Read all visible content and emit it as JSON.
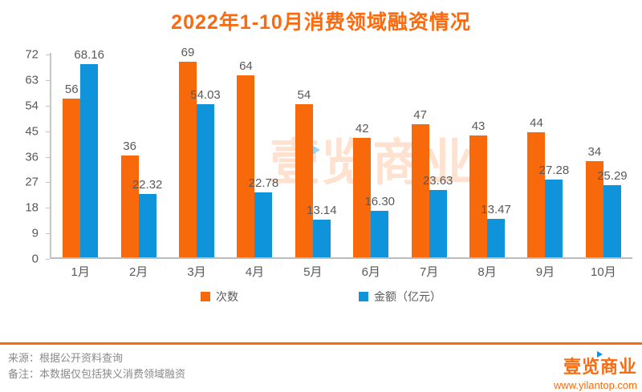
{
  "title": "2022年1-10月消费领域融资情况",
  "watermark": "壹览商业",
  "chart_data": {
    "type": "bar",
    "title": "2022年1-10月消费领域融资情况",
    "categories": [
      "1月",
      "2月",
      "3月",
      "4月",
      "5月",
      "6月",
      "7月",
      "8月",
      "9月",
      "10月"
    ],
    "series": [
      {
        "name": "次数",
        "color": "#f8690c",
        "values": [
          56,
          36,
          69,
          64,
          54,
          42,
          47,
          43,
          44,
          34
        ],
        "labels": [
          "56",
          "36",
          "69",
          "64",
          "54",
          "42",
          "47",
          "43",
          "44",
          "34"
        ]
      },
      {
        "name": "金额（亿元）",
        "color": "#0f93db",
        "values": [
          68.16,
          22.32,
          54.03,
          22.78,
          13.14,
          16.3,
          23.63,
          13.47,
          27.28,
          25.29
        ],
        "labels": [
          "68.16",
          "22.32",
          "54.03",
          "22.78",
          "13.14",
          "16.30",
          "23.63",
          "13.47",
          "27.28",
          "25.29"
        ]
      }
    ],
    "xlabel": "",
    "ylabel": "",
    "ylim": [
      0,
      72
    ],
    "yticks": [
      0,
      9,
      18,
      27,
      36,
      45,
      54,
      63,
      72
    ],
    "grid": false,
    "legend_position": "bottom"
  },
  "legend": {
    "items": [
      {
        "label": "次数",
        "color": "#f8690c"
      },
      {
        "label": "金额（亿元）",
        "color": "#0f93db"
      }
    ]
  },
  "footer": {
    "source": "来源：根据公开资料查询",
    "note": "备注：本数据仅包括狭义消费领域融资"
  },
  "logo": {
    "name": "壹览商业",
    "url": "www.yilantop.com"
  },
  "colors": {
    "accent_orange": "#fb6a0e",
    "bar_orange": "#f8690c",
    "bar_blue": "#0f93db",
    "axis_gray": "#c6c6c6",
    "text_gray": "#595959",
    "footer_gray": "#8a8a8a",
    "watermark": "rgba(249,106,13,0.20)"
  }
}
